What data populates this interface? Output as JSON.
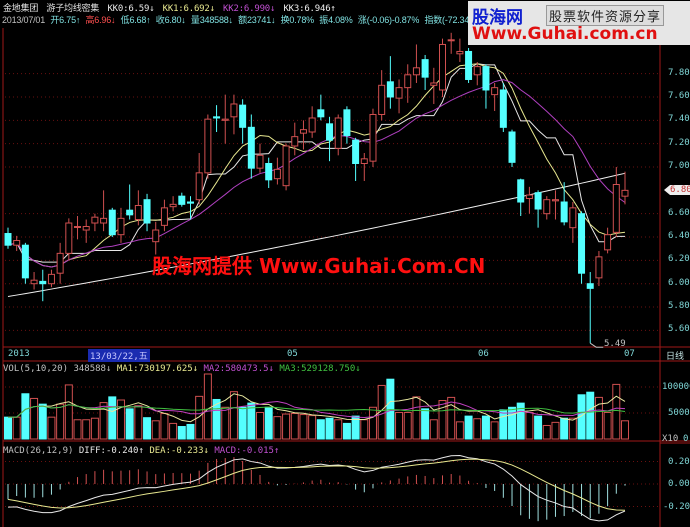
{
  "header": {
    "stock_name": "金地集团",
    "indicator_name": "游子均线密集",
    "kk0": "KK0:6.59↓",
    "kk1": "KK1:6.692↓",
    "kk2": "KK2:6.990↓",
    "kk3": "KK3:6.946↑",
    "date": "2013/07/01",
    "open": "开6.75↑",
    "high": "高6.96↓",
    "low": "低6.68↑",
    "close": "收6.80↓",
    "volume": "量348588↓",
    "amount": "额23741↓",
    "turnover": "换0.78%",
    "amplitude": "振4.08%",
    "change": "涨(-0.06)-0.87%",
    "index": "指数(-72.34)"
  },
  "banner": {
    "logo": "股海网",
    "tagline": "股票软件资源分享",
    "url": "Www.Guhai.com.cn"
  },
  "watermark": "股海网提供 Www.Guhai.Com.CN",
  "date_axis": {
    "labels": [
      "2013",
      "05",
      "06",
      "07"
    ],
    "selected_date": "13/03/22,五",
    "period": "日线"
  },
  "price_axis": [
    "7.80",
    "7.60",
    "7.40",
    "7.20",
    "7.00",
    "6.60",
    "6.40",
    "6.20",
    "6.00",
    "5.80",
    "5.60"
  ],
  "current_price_tag": "6.80",
  "low_marker": "5.49",
  "volume_panel": {
    "title": "VOL(5,10,20)",
    "value": "348588↓",
    "ma1": "MA1:730197.625↓",
    "ma2": "MA2:580473.5↓",
    "ma3": "MA3:529128.750↓",
    "axis": [
      "100000",
      "50000",
      "0"
    ],
    "multiplier": "X10"
  },
  "macd_panel": {
    "title": "MACD(26,12,9)",
    "diff": "DIFF:-0.240↑",
    "dea": "DEA:-0.233↓",
    "macd": "MACD:-0.015↑",
    "axis": [
      "0.20",
      "0.00",
      "-0.20"
    ]
  },
  "colors": {
    "up": "#d05050",
    "down": "#54ffff",
    "kk0": "#e8e8e8",
    "kk1": "#e8e890",
    "kk2": "#b040c0",
    "kk3": "#f0f0f0",
    "vol_ma1": "#e8e8a0",
    "vol_ma2": "#c040c0",
    "vol_ma3": "#40c040",
    "grid": "#6a1010"
  },
  "chart_data": {
    "type": "candlestick",
    "ohlc": [
      [
        6.43,
        6.48,
        6.3,
        6.33
      ],
      [
        6.33,
        6.41,
        6.28,
        6.37
      ],
      [
        6.33,
        6.35,
        6.0,
        6.05
      ],
      [
        6.0,
        6.1,
        5.95,
        6.03
      ],
      [
        6.02,
        6.12,
        5.85,
        6.0
      ],
      [
        6.0,
        6.12,
        5.97,
        6.08
      ],
      [
        6.09,
        6.35,
        6.0,
        6.26
      ],
      [
        6.26,
        6.56,
        6.2,
        6.52
      ],
      [
        6.49,
        6.58,
        6.38,
        6.49
      ],
      [
        6.46,
        6.55,
        6.35,
        6.49
      ],
      [
        6.52,
        6.6,
        6.45,
        6.57
      ],
      [
        6.52,
        6.8,
        6.45,
        6.56
      ],
      [
        6.63,
        6.65,
        6.4,
        6.42
      ],
      [
        6.42,
        6.65,
        6.35,
        6.56
      ],
      [
        6.63,
        6.85,
        6.55,
        6.59
      ],
      [
        6.55,
        6.8,
        6.5,
        6.67
      ],
      [
        6.72,
        6.77,
        6.45,
        6.52
      ],
      [
        6.36,
        6.53,
        6.25,
        6.46
      ],
      [
        6.5,
        6.72,
        6.45,
        6.65
      ],
      [
        6.66,
        6.75,
        6.62,
        6.68
      ],
      [
        6.75,
        6.78,
        6.66,
        6.68
      ],
      [
        6.7,
        6.75,
        6.55,
        6.69
      ],
      [
        6.72,
        7.12,
        6.68,
        6.95
      ],
      [
        6.95,
        7.45,
        6.9,
        7.41
      ],
      [
        7.43,
        7.53,
        7.3,
        7.42
      ],
      [
        7.4,
        7.62,
        7.2,
        7.41
      ],
      [
        7.43,
        7.62,
        7.28,
        7.54
      ],
      [
        7.53,
        7.58,
        7.2,
        7.34
      ],
      [
        7.34,
        7.45,
        6.9,
        6.99
      ],
      [
        6.99,
        7.2,
        6.95,
        7.1
      ],
      [
        7.03,
        7.08,
        6.82,
        6.89
      ],
      [
        6.9,
        7.08,
        6.85,
        6.98
      ],
      [
        6.84,
        7.2,
        6.8,
        7.18
      ],
      [
        7.18,
        7.38,
        7.1,
        7.26
      ],
      [
        7.29,
        7.4,
        7.15,
        7.32
      ],
      [
        7.3,
        7.52,
        7.25,
        7.42
      ],
      [
        7.49,
        7.62,
        7.4,
        7.43
      ],
      [
        7.37,
        7.43,
        7.05,
        7.23
      ],
      [
        7.16,
        7.45,
        7.1,
        7.42
      ],
      [
        7.49,
        7.52,
        7.2,
        7.27
      ],
      [
        7.23,
        7.25,
        6.88,
        7.03
      ],
      [
        7.03,
        7.12,
        6.88,
        7.07
      ],
      [
        7.05,
        7.5,
        7.0,
        7.45
      ],
      [
        7.45,
        7.83,
        7.4,
        7.7
      ],
      [
        7.73,
        7.95,
        7.5,
        7.6
      ],
      [
        7.59,
        7.75,
        7.46,
        7.68
      ],
      [
        7.68,
        7.88,
        7.55,
        7.79
      ],
      [
        7.79,
        8.05,
        7.72,
        7.85
      ],
      [
        7.92,
        7.96,
        7.66,
        7.77
      ],
      [
        7.7,
        7.85,
        7.54,
        7.72
      ],
      [
        7.66,
        8.1,
        7.6,
        8.05
      ],
      [
        8.09,
        8.15,
        7.97,
        8.09
      ],
      [
        7.97,
        8.1,
        7.9,
        7.99
      ],
      [
        7.99,
        8.02,
        7.72,
        7.75
      ],
      [
        7.79,
        7.9,
        7.7,
        7.86
      ],
      [
        7.86,
        7.88,
        7.5,
        7.66
      ],
      [
        7.62,
        7.72,
        7.48,
        7.68
      ],
      [
        7.66,
        7.72,
        7.3,
        7.34
      ],
      [
        7.3,
        7.32,
        7.0,
        7.04
      ],
      [
        6.89,
        6.9,
        6.58,
        6.7
      ],
      [
        6.73,
        6.83,
        6.6,
        6.76
      ],
      [
        6.78,
        6.8,
        6.48,
        6.64
      ],
      [
        6.6,
        6.75,
        6.55,
        6.72
      ],
      [
        6.71,
        6.8,
        6.55,
        6.72
      ],
      [
        6.7,
        6.87,
        6.5,
        6.53
      ],
      [
        6.48,
        6.7,
        6.35,
        6.65
      ],
      [
        6.6,
        6.62,
        6.0,
        6.09
      ],
      [
        6.0,
        6.1,
        5.49,
        5.96
      ],
      [
        6.05,
        6.28,
        5.98,
        6.23
      ],
      [
        6.29,
        6.48,
        6.26,
        6.42
      ],
      [
        6.44,
        7.0,
        6.4,
        6.85
      ],
      [
        6.75,
        6.96,
        6.68,
        6.8
      ]
    ],
    "volume": [
      42000,
      42000,
      87000,
      78000,
      67000,
      42000,
      67000,
      104000,
      37000,
      37000,
      40000,
      70000,
      81000,
      75000,
      58000,
      64000,
      41000,
      35000,
      49000,
      30000,
      24000,
      28000,
      82000,
      125000,
      76000,
      61000,
      91000,
      61000,
      69000,
      51000,
      61000,
      43000,
      48000,
      49000,
      47000,
      45000,
      37000,
      40000,
      37000,
      30000,
      44000,
      37000,
      61000,
      103000,
      115000,
      51000,
      51000,
      81000,
      58000,
      37000,
      74000,
      80000,
      33000,
      44000,
      39000,
      44000,
      33000,
      56000,
      61000,
      69000,
      51000,
      44000,
      26000,
      32000,
      40000,
      40000,
      85000,
      90000,
      80000,
      51000,
      105000,
      35000
    ],
    "kk3_line": [
      5.89,
      6.946
    ],
    "price_range": [
      5.45,
      8.2
    ],
    "volume_range": [
      0,
      125000
    ],
    "macd_range": [
      -0.3,
      0.3
    ],
    "grid": true
  }
}
